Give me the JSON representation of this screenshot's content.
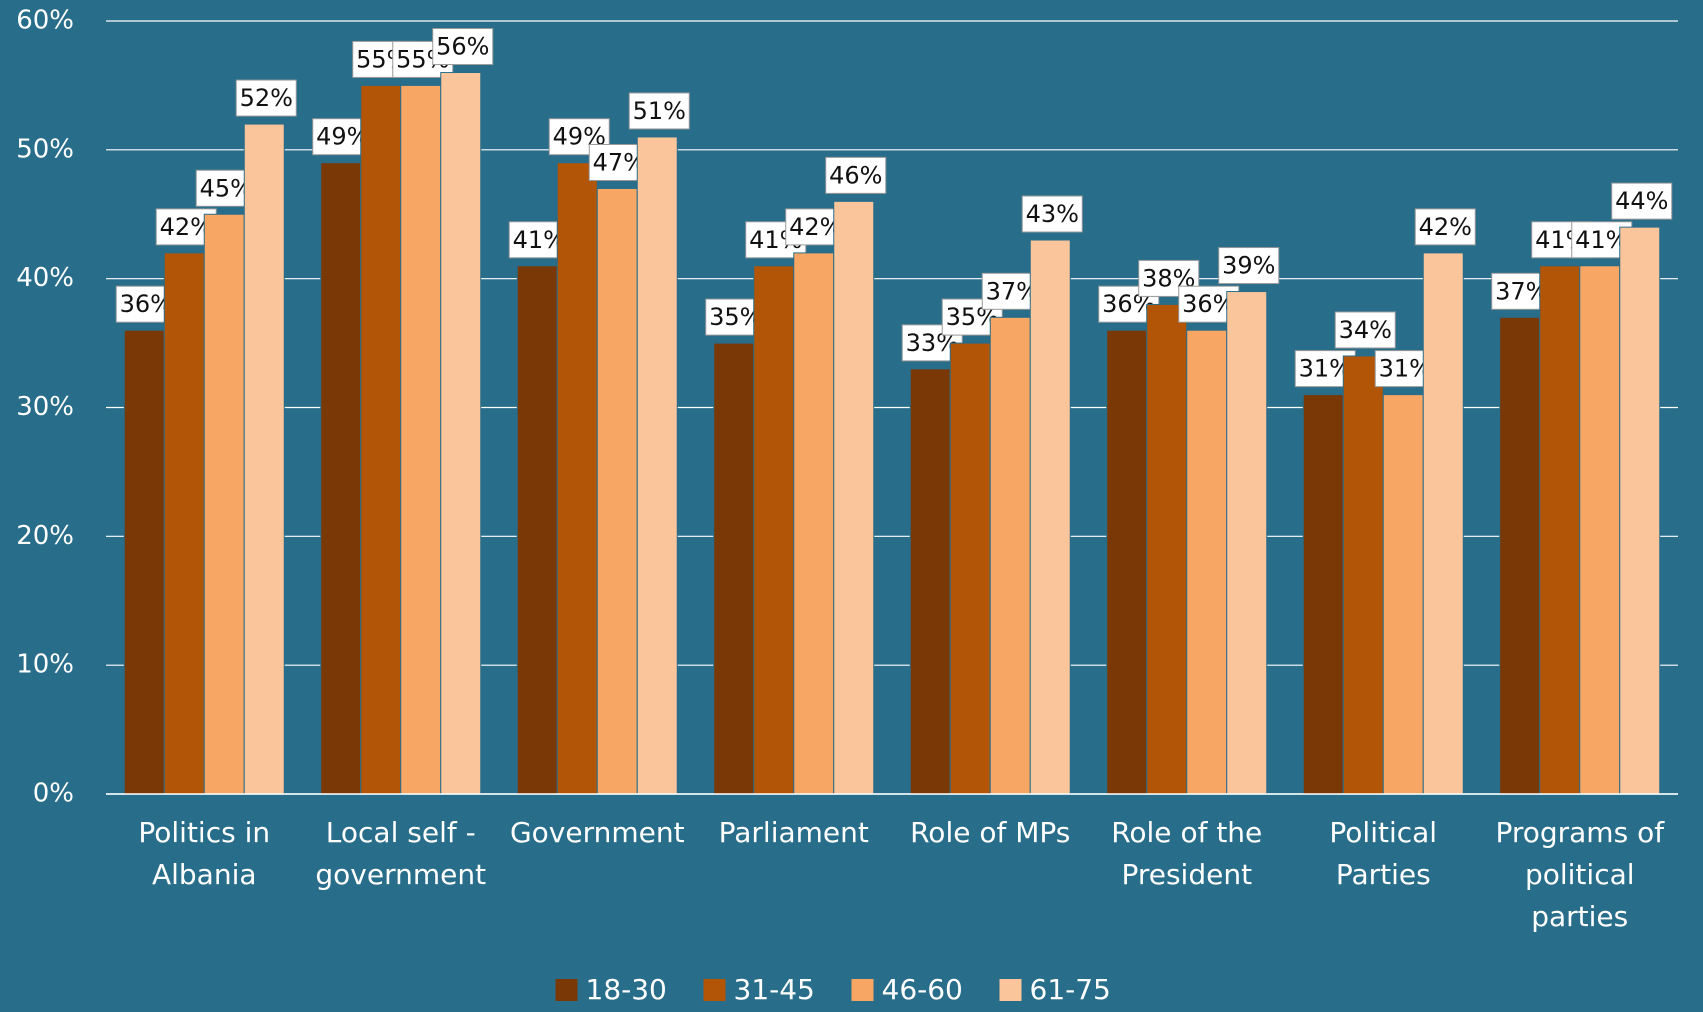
{
  "chart_data": {
    "type": "bar",
    "categories": [
      "Politics in Albania",
      "Local self - government",
      "Government",
      "Parliament",
      "Role of MPs",
      "Role of the President",
      "Political Parties",
      "Programs of political parties"
    ],
    "series": [
      {
        "name": "18-30",
        "color": "#7a3806",
        "values": [
          36,
          49,
          41,
          35,
          33,
          36,
          31,
          37
        ],
        "value_labels": [
          "36%",
          "49%",
          "41%",
          "35%",
          "33%",
          "36%",
          "31%",
          "37%"
        ]
      },
      {
        "name": "31-45",
        "color": "#b35506",
        "values": [
          42,
          55,
          49,
          41,
          35,
          38,
          34,
          41
        ],
        "value_labels": [
          "42%",
          "55%",
          "49%",
          "41%",
          "35%",
          "38%",
          "34%",
          "41%"
        ]
      },
      {
        "name": "46-60",
        "color": "#f7a663",
        "values": [
          45,
          55,
          47,
          42,
          37,
          36,
          31,
          41
        ],
        "value_labels": [
          "45%",
          "55%",
          "47%",
          "42%",
          "37%",
          "36%",
          "31%",
          "41%"
        ]
      },
      {
        "name": "61-75",
        "color": "#fbc59b",
        "values": [
          52,
          56,
          51,
          46,
          43,
          39,
          42,
          44
        ],
        "value_labels": [
          "52%",
          "56%",
          "51%",
          "46%",
          "43%",
          "39%",
          "42%",
          "44%"
        ]
      }
    ],
    "ylim": [
      0,
      60
    ],
    "yticks": [
      {
        "value": 0,
        "label": "0%"
      },
      {
        "value": 10,
        "label": "10%"
      },
      {
        "value": 20,
        "label": "20%"
      },
      {
        "value": 30,
        "label": "30%"
      },
      {
        "value": 40,
        "label": "40%"
      },
      {
        "value": 50,
        "label": "50%"
      },
      {
        "value": 60,
        "label": "60%"
      }
    ],
    "grid": true,
    "legend": "bottom"
  }
}
